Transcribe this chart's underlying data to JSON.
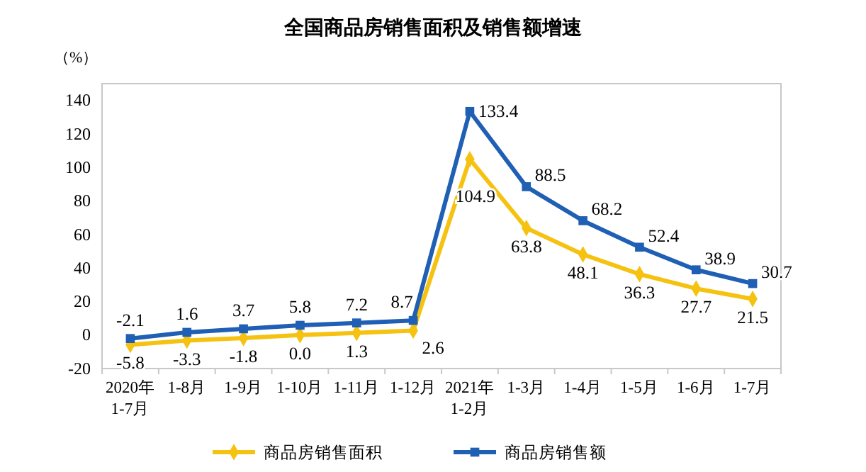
{
  "chart_data": {
    "type": "line",
    "title": "全国商品房销售面积及销售额增速",
    "ylabel": "（%）",
    "categories": [
      "2020年\n1-7月",
      "1-8月",
      "1-9月",
      "1-10月",
      "1-11月",
      "1-12月",
      "2021年\n1-2月",
      "1-3月",
      "1-4月",
      "1-5月",
      "1-6月",
      "1-7月"
    ],
    "series": [
      {
        "name": "商品房销售面积",
        "color": "#f5c211",
        "marker": "diamond",
        "values": [
          -5.8,
          -3.3,
          -1.8,
          0.0,
          1.3,
          2.6,
          104.9,
          63.8,
          48.1,
          36.3,
          27.7,
          21.5
        ],
        "value_labels": [
          "-5.8",
          "-3.3",
          "-1.8",
          "0.0",
          "1.3",
          "2.6",
          "104.9",
          "63.8",
          "48.1",
          "36.3",
          "27.7",
          "21.5"
        ]
      },
      {
        "name": "商品房销售额",
        "color": "#1f5fb4",
        "marker": "square",
        "values": [
          -2.1,
          1.6,
          3.7,
          5.8,
          7.2,
          8.7,
          133.4,
          88.5,
          68.2,
          52.4,
          38.9,
          30.7
        ],
        "value_labels": [
          "-2.1",
          "1.6",
          "3.7",
          "5.8",
          "7.2",
          "8.7",
          "133.4",
          "88.5",
          "68.2",
          "52.4",
          "38.9",
          "30.7"
        ]
      }
    ],
    "ylim": [
      -20,
      150
    ],
    "yticks": [
      -20,
      0,
      20,
      40,
      60,
      80,
      100,
      120,
      140
    ],
    "grid": false,
    "legend": "bottom"
  }
}
